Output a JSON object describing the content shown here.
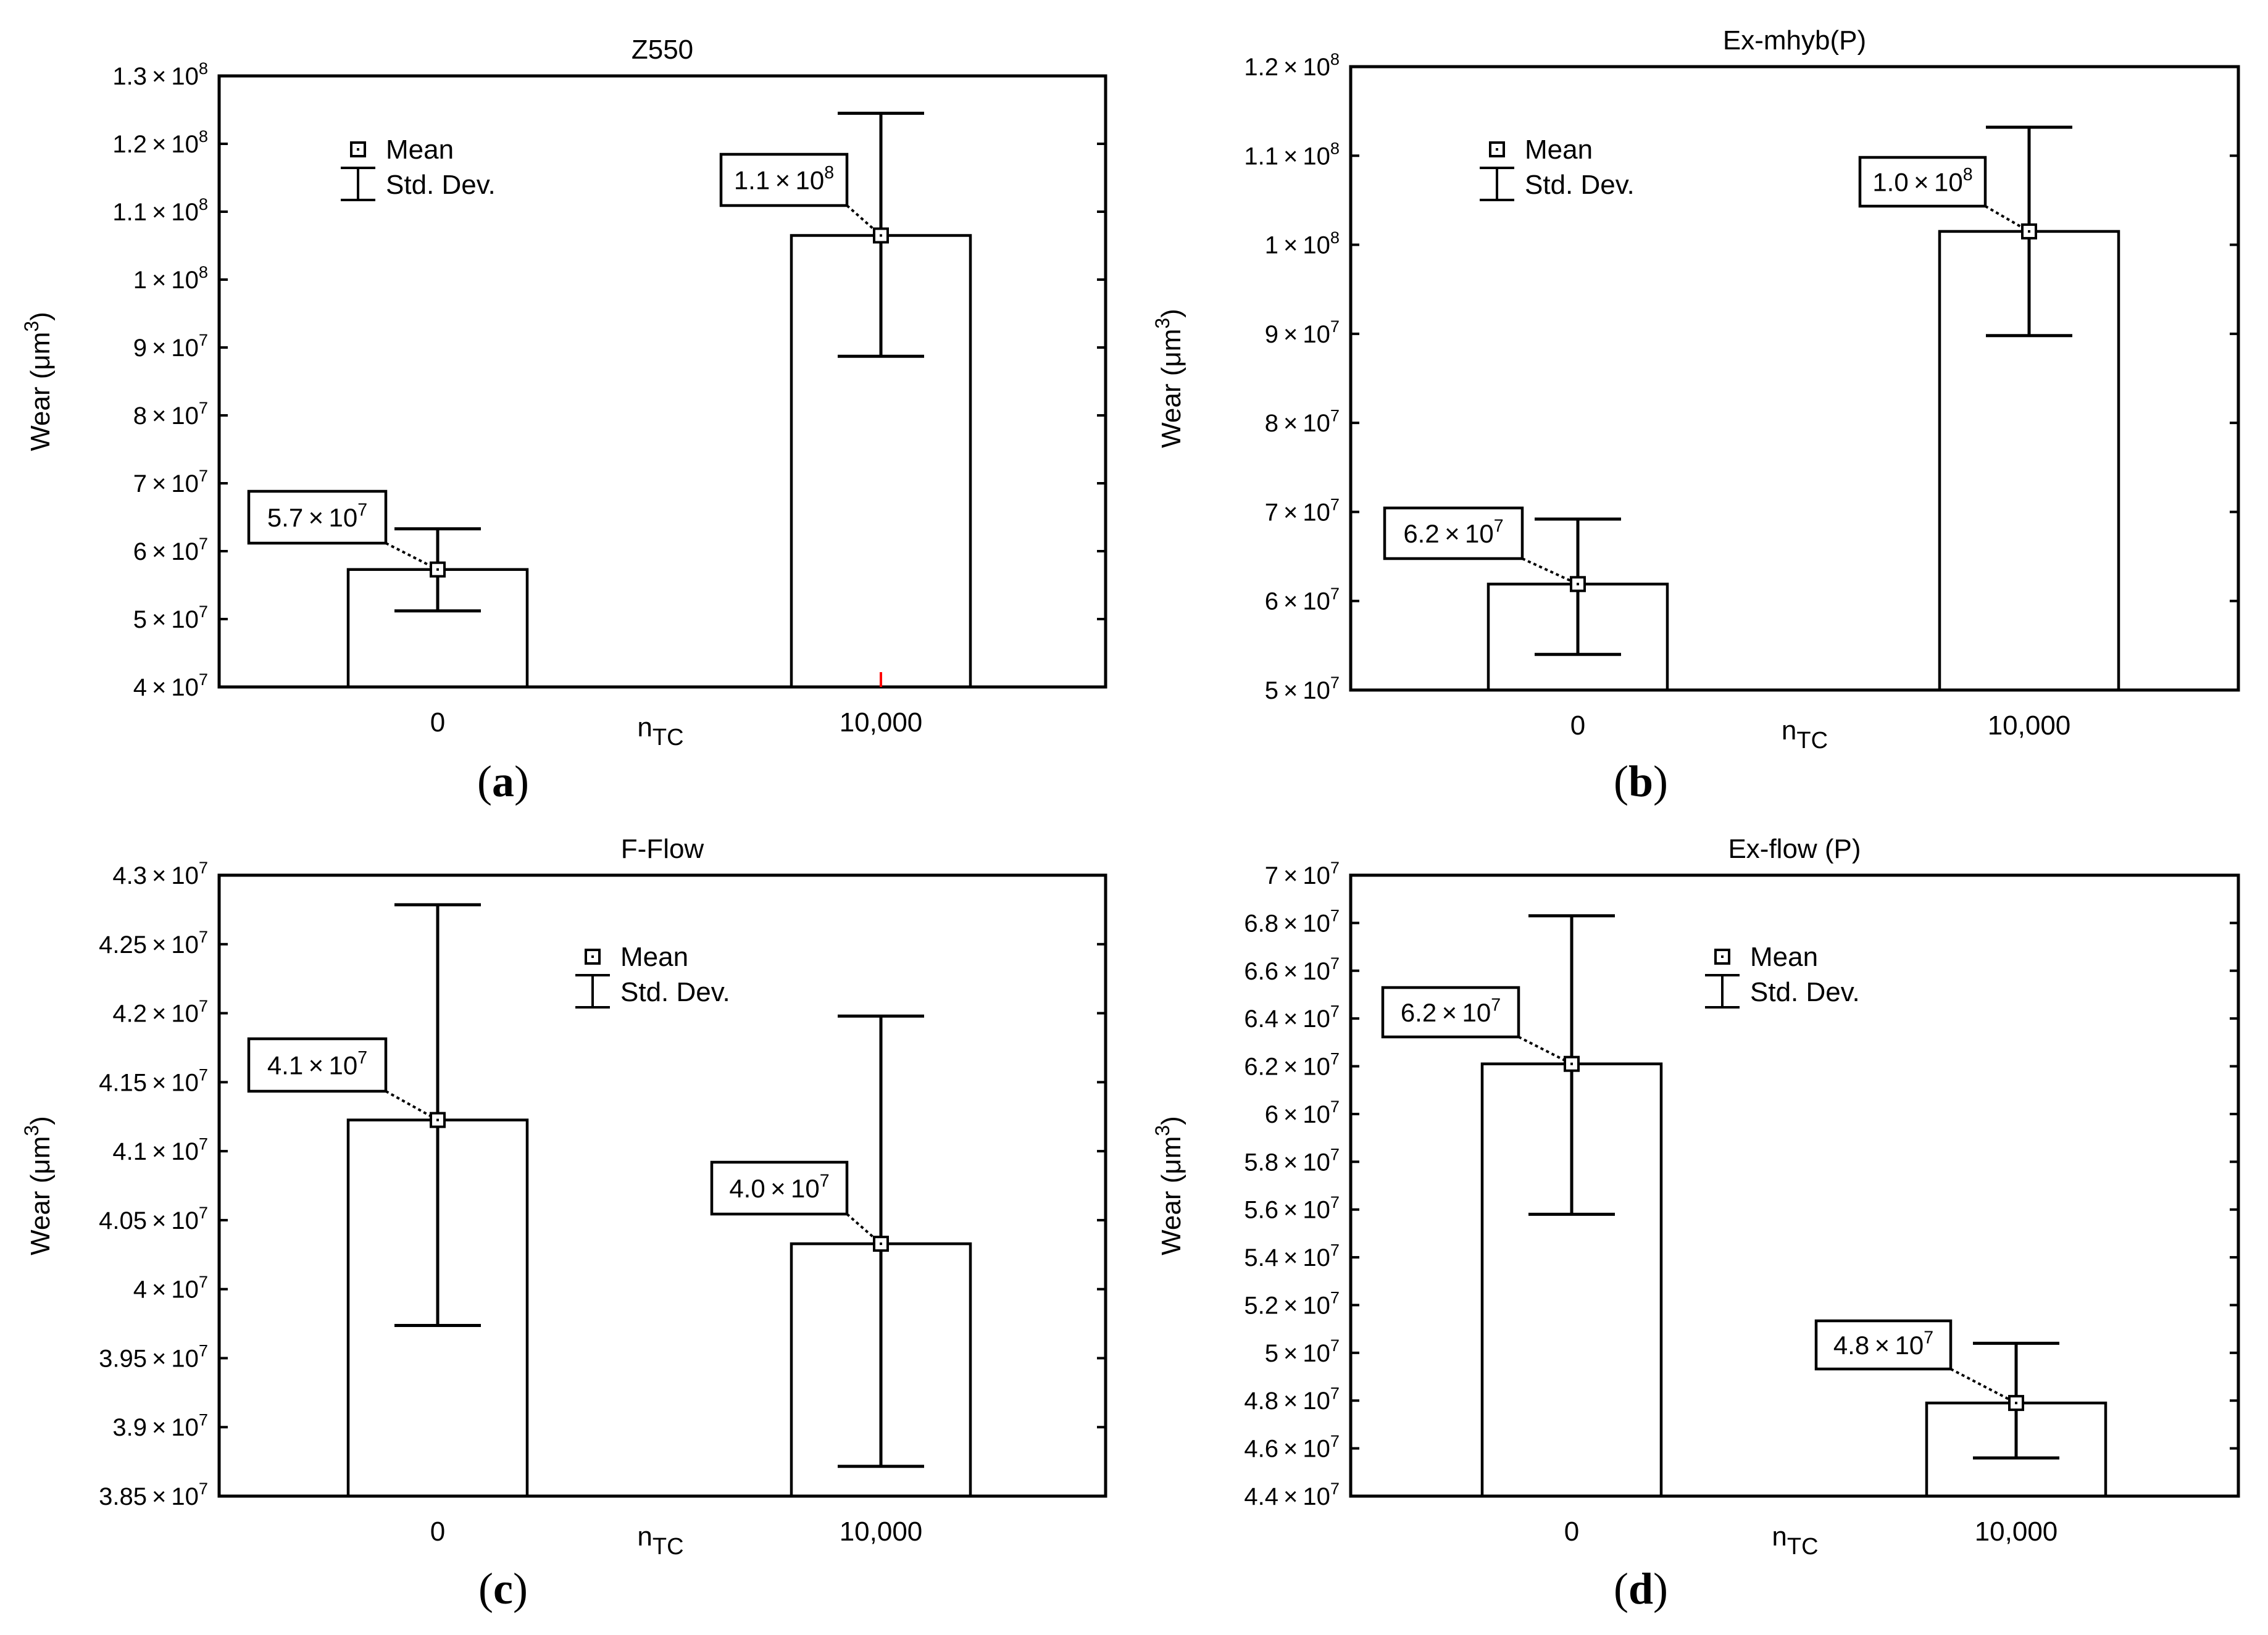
{
  "figure": {
    "panels": [
      {
        "label": "(a)",
        "label_letter": "a"
      },
      {
        "label": "(b)",
        "label_letter": "b"
      },
      {
        "label": "(c)",
        "label_letter": "c"
      },
      {
        "label": "(d)",
        "label_letter": "d"
      }
    ]
  },
  "colors": {
    "axis": "#000000",
    "bar_fill": "#ffffff",
    "red_tick": "#ff0000"
  },
  "chart_data": [
    {
      "type": "bar",
      "title": "Z550",
      "xlabel_main": "n",
      "xlabel_sub": "TC",
      "ylabel_main": "Wear (μm",
      "ylabel_sup": "3",
      "ylabel_close": ")",
      "categories": [
        "0",
        "10,000"
      ],
      "values": [
        57300000.0,
        106500000.0
      ],
      "err_low": [
        51200000.0,
        88700000.0
      ],
      "err_high": [
        63300000.0,
        124500000.0
      ],
      "ylim": [
        40000000.0,
        130000000.0
      ],
      "yticks": [
        {
          "v": 40000000.0,
          "m": "4",
          "e": "7"
        },
        {
          "v": 50000000.0,
          "m": "5",
          "e": "7"
        },
        {
          "v": 60000000.0,
          "m": "6",
          "e": "7"
        },
        {
          "v": 70000000.0,
          "m": "7",
          "e": "7"
        },
        {
          "v": 80000000.0,
          "m": "8",
          "e": "7"
        },
        {
          "v": 90000000.0,
          "m": "9",
          "e": "7"
        },
        {
          "v": 100000000.0,
          "m": "1",
          "e": "8"
        },
        {
          "v": 110000000.0,
          "m": "1.1",
          "e": "8"
        },
        {
          "v": 120000000.0,
          "m": "1.2",
          "e": "8"
        },
        {
          "v": 130000000.0,
          "m": "1.3",
          "e": "8"
        }
      ],
      "annotations": [
        {
          "m": "5.7",
          "e": "7"
        },
        {
          "m": "1.1",
          "e": "8"
        }
      ],
      "legend": {
        "mean": "Mean",
        "std": "Std. Dev.",
        "placement": "top-left"
      }
    },
    {
      "type": "bar",
      "title": "Ex-mhyb(P)",
      "xlabel_main": "n",
      "xlabel_sub": "TC",
      "ylabel_main": "Wear (μm",
      "ylabel_sup": "3",
      "ylabel_close": ")",
      "categories": [
        "0",
        "10,000"
      ],
      "values": [
        61900000.0,
        101500000.0
      ],
      "err_low": [
        54000000.0,
        89800000.0
      ],
      "err_high": [
        69200000.0,
        113200000.0
      ],
      "ylim": [
        50000000.0,
        120000000.0
      ],
      "yticks": [
        {
          "v": 50000000.0,
          "m": "5",
          "e": "7"
        },
        {
          "v": 60000000.0,
          "m": "6",
          "e": "7"
        },
        {
          "v": 70000000.0,
          "m": "7",
          "e": "7"
        },
        {
          "v": 80000000.0,
          "m": "8",
          "e": "7"
        },
        {
          "v": 90000000.0,
          "m": "9",
          "e": "7"
        },
        {
          "v": 100000000.0,
          "m": "1",
          "e": "8"
        },
        {
          "v": 110000000.0,
          "m": "1.1",
          "e": "8"
        },
        {
          "v": 120000000.0,
          "m": "1.2",
          "e": "8"
        }
      ],
      "annotations": [
        {
          "m": "6.2",
          "e": "7"
        },
        {
          "m": "1.0",
          "e": "8"
        }
      ],
      "legend": {
        "mean": "Mean",
        "std": "Std. Dev.",
        "placement": "top-left"
      }
    },
    {
      "type": "bar",
      "title": "F-Flow",
      "xlabel_main": "n",
      "xlabel_sub": "TC",
      "ylabel_main": "Wear (μm",
      "ylabel_sup": "3",
      "ylabel_close": ")",
      "categories": [
        "0",
        "10,000"
      ],
      "values": [
        41226000.0,
        40329000.0
      ],
      "err_low": [
        39737000.0,
        38716000.0
      ],
      "err_high": [
        42786000.0,
        41979000.0
      ],
      "ylim": [
        38500000.0,
        43000000.0
      ],
      "yticks": [
        {
          "v": 38500000.0,
          "m": "3.85",
          "e": "7"
        },
        {
          "v": 39000000.0,
          "m": "3.9",
          "e": "7"
        },
        {
          "v": 39500000.0,
          "m": "3.95",
          "e": "7"
        },
        {
          "v": 40000000.0,
          "m": "4",
          "e": "7"
        },
        {
          "v": 40500000.0,
          "m": "4.05",
          "e": "7"
        },
        {
          "v": 41000000.0,
          "m": "4.1",
          "e": "7"
        },
        {
          "v": 41500000.0,
          "m": "4.15",
          "e": "7"
        },
        {
          "v": 42000000.0,
          "m": "4.2",
          "e": "7"
        },
        {
          "v": 42500000.0,
          "m": "4.25",
          "e": "7"
        },
        {
          "v": 43000000.0,
          "m": "4.3",
          "e": "7"
        }
      ],
      "annotations": [
        {
          "m": "4.1",
          "e": "7"
        },
        {
          "m": "4.0",
          "e": "7"
        }
      ],
      "legend": {
        "mean": "Mean",
        "std": "Std. Dev.",
        "placement": "top-center"
      }
    },
    {
      "type": "bar",
      "title": "Ex-flow (P)",
      "xlabel_main": "n",
      "xlabel_sub": "TC",
      "ylabel_main": "Wear (μm",
      "ylabel_sup": "3",
      "ylabel_close": ")",
      "categories": [
        "0",
        "10,000"
      ],
      "values": [
        62100000.0,
        47900000.0
      ],
      "err_low": [
        55800000.0,
        45600000.0
      ],
      "err_high": [
        68300000.0,
        50400000.0
      ],
      "ylim": [
        44000000.0,
        70000000.0
      ],
      "yticks": [
        {
          "v": 44000000.0,
          "m": "4.4",
          "e": "7"
        },
        {
          "v": 46000000.0,
          "m": "4.6",
          "e": "7"
        },
        {
          "v": 48000000.0,
          "m": "4.8",
          "e": "7"
        },
        {
          "v": 50000000.0,
          "m": "5",
          "e": "7"
        },
        {
          "v": 52000000.0,
          "m": "5.2",
          "e": "7"
        },
        {
          "v": 54000000.0,
          "m": "5.4",
          "e": "7"
        },
        {
          "v": 56000000.0,
          "m": "5.6",
          "e": "7"
        },
        {
          "v": 58000000.0,
          "m": "5.8",
          "e": "7"
        },
        {
          "v": 60000000.0,
          "m": "6",
          "e": "7"
        },
        {
          "v": 62000000.0,
          "m": "6.2",
          "e": "7"
        },
        {
          "v": 64000000.0,
          "m": "6.4",
          "e": "7"
        },
        {
          "v": 66000000.0,
          "m": "6.6",
          "e": "7"
        },
        {
          "v": 68000000.0,
          "m": "6.8",
          "e": "7"
        },
        {
          "v": 70000000.0,
          "m": "7",
          "e": "7"
        }
      ],
      "annotations": [
        {
          "m": "6.2",
          "e": "7"
        },
        {
          "m": "4.8",
          "e": "7"
        }
      ],
      "legend": {
        "mean": "Mean",
        "std": "Std. Dev.",
        "placement": "top-right"
      }
    }
  ]
}
